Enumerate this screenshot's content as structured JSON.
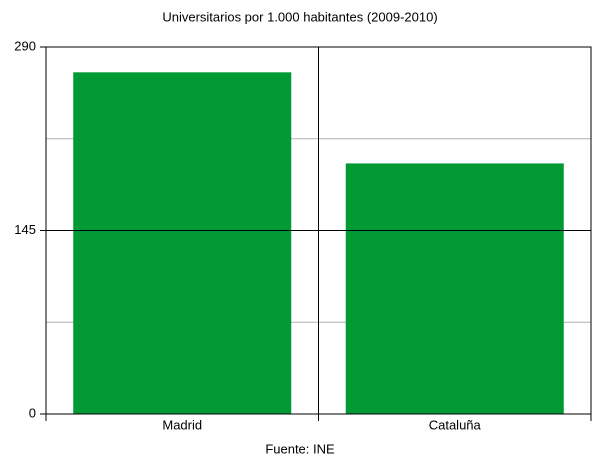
{
  "chart_data": {
    "type": "bar",
    "title": "Universitarios por 1.000 habitantes (2009-2010)",
    "categories": [
      "Madrid",
      "Cataluña"
    ],
    "values": [
      270,
      198
    ],
    "color": "#009933",
    "ylim": [
      0,
      290
    ],
    "yticks": [
      0,
      145,
      290
    ],
    "minor_yticks": [
      72.5,
      217.5
    ],
    "grid": true,
    "source": "Fuente: INE"
  }
}
